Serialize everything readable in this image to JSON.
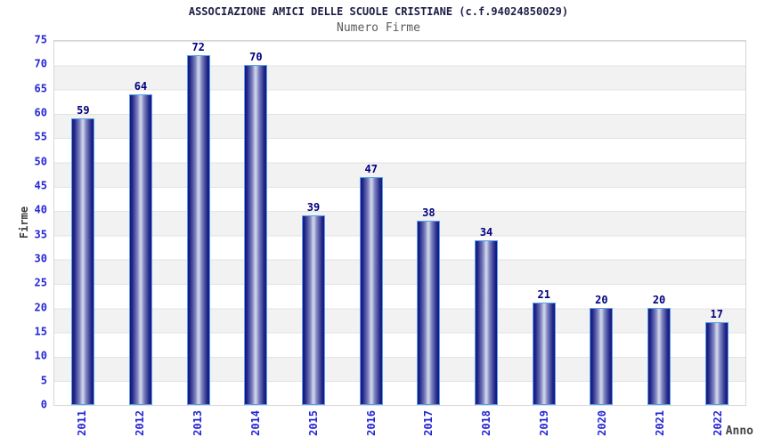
{
  "chart_data": {
    "type": "bar",
    "title": "ASSOCIAZIONE AMICI DELLE SCUOLE CRISTIANE (c.f.94024850029)",
    "subtitle": "Numero Firme",
    "xlabel": "Anno",
    "ylabel": "Firme",
    "categories": [
      "2011",
      "2012",
      "2013",
      "2014",
      "2015",
      "2016",
      "2017",
      "2018",
      "2019",
      "2020",
      "2021",
      "2022"
    ],
    "values": [
      59,
      64,
      72,
      70,
      39,
      47,
      38,
      34,
      21,
      20,
      20,
      17
    ],
    "ylim": [
      0,
      75
    ],
    "ytick_step": 5,
    "grid": "horizontal gridlines with alternating white/gray bands",
    "legend": "none",
    "bar_labels_shown": true,
    "colors": {
      "bar_dark": "#16167a",
      "bar_mid": "#7e85bf",
      "bar_light": "#cdd2e8",
      "bar_border": "#55a0ee",
      "value_label": "#00007f",
      "axis_tick_label": "#2626d6",
      "axis_title": "#3c3c3c",
      "band": "#f2f2f2",
      "plot_border": "#d6d6d6",
      "title_color": "#1d1d46",
      "subtitle_color": "#5a5a5a"
    }
  }
}
